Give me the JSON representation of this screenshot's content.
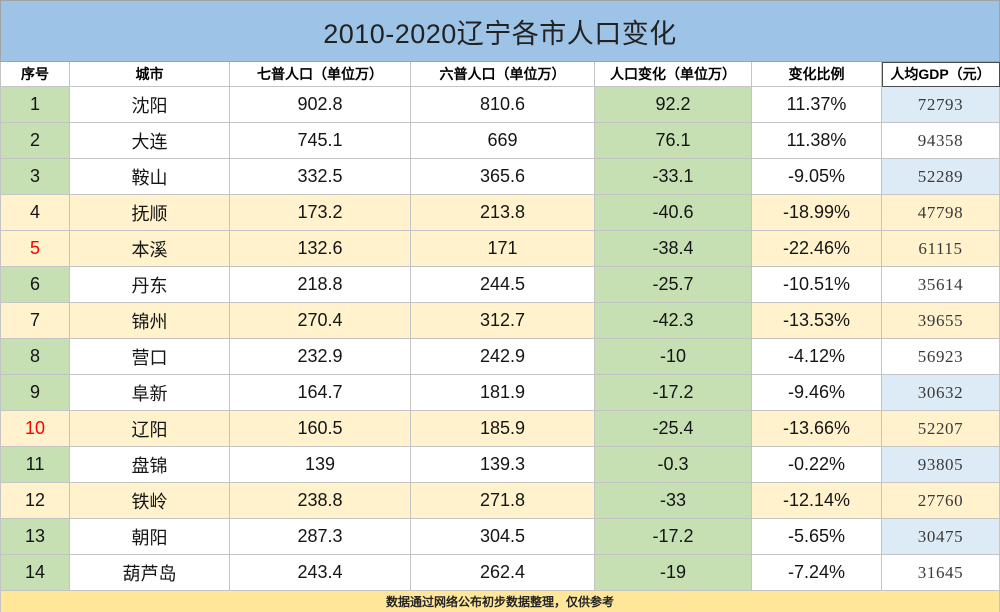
{
  "colors": {
    "title_bg": "#9dc3e6",
    "green": "#c6e0b4",
    "cream": "#fff2cc",
    "blue": "#ddebf7",
    "white": "#ffffff",
    "footer_bg": "#ffe699",
    "highlight_text": "#ff0000"
  },
  "chart_data": {
    "type": "table",
    "title": "2010-2020辽宁各市人口变化",
    "columns": [
      "序号",
      "城市",
      "七普人口（单位万）",
      "六普人口（单位万）",
      "人口变化（单位万）",
      "变化比例",
      "人均GDP（元）"
    ],
    "rows": [
      {
        "no": 1,
        "city": "沈阳",
        "pop_2020": 902.8,
        "pop_2010": 810.6,
        "change": 92.2,
        "change_ratio": "11.37%",
        "gdp_per_capita": 72793,
        "highlight": false,
        "red_index": false,
        "gdp_marked": true
      },
      {
        "no": 2,
        "city": "大连",
        "pop_2020": 745.1,
        "pop_2010": 669,
        "change": 76.1,
        "change_ratio": "11.38%",
        "gdp_per_capita": 94358,
        "highlight": false,
        "red_index": false,
        "gdp_marked": false
      },
      {
        "no": 3,
        "city": "鞍山",
        "pop_2020": 332.5,
        "pop_2010": 365.6,
        "change": -33.1,
        "change_ratio": "-9.05%",
        "gdp_per_capita": 52289,
        "highlight": false,
        "red_index": false,
        "gdp_marked": true
      },
      {
        "no": 4,
        "city": "抚顺",
        "pop_2020": 173.2,
        "pop_2010": 213.8,
        "change": -40.6,
        "change_ratio": "-18.99%",
        "gdp_per_capita": 47798,
        "highlight": true,
        "red_index": false,
        "gdp_marked": false
      },
      {
        "no": 5,
        "city": "本溪",
        "pop_2020": 132.6,
        "pop_2010": 171,
        "change": -38.4,
        "change_ratio": "-22.46%",
        "gdp_per_capita": 61115,
        "highlight": true,
        "red_index": true,
        "gdp_marked": false
      },
      {
        "no": 6,
        "city": "丹东",
        "pop_2020": 218.8,
        "pop_2010": 244.5,
        "change": -25.7,
        "change_ratio": "-10.51%",
        "gdp_per_capita": 35614,
        "highlight": false,
        "red_index": false,
        "gdp_marked": false
      },
      {
        "no": 7,
        "city": "锦州",
        "pop_2020": 270.4,
        "pop_2010": 312.7,
        "change": -42.3,
        "change_ratio": "-13.53%",
        "gdp_per_capita": 39655,
        "highlight": true,
        "red_index": false,
        "gdp_marked": false
      },
      {
        "no": 8,
        "city": "营口",
        "pop_2020": 232.9,
        "pop_2010": 242.9,
        "change": -10,
        "change_ratio": "-4.12%",
        "gdp_per_capita": 56923,
        "highlight": false,
        "red_index": false,
        "gdp_marked": false
      },
      {
        "no": 9,
        "city": "阜新",
        "pop_2020": 164.7,
        "pop_2010": 181.9,
        "change": -17.2,
        "change_ratio": "-9.46%",
        "gdp_per_capita": 30632,
        "highlight": false,
        "red_index": false,
        "gdp_marked": true
      },
      {
        "no": 10,
        "city": "辽阳",
        "pop_2020": 160.5,
        "pop_2010": 185.9,
        "change": -25.4,
        "change_ratio": "-13.66%",
        "gdp_per_capita": 52207,
        "highlight": true,
        "red_index": true,
        "gdp_marked": false
      },
      {
        "no": 11,
        "city": "盘锦",
        "pop_2020": 139,
        "pop_2010": 139.3,
        "change": -0.3,
        "change_ratio": "-0.22%",
        "gdp_per_capita": 93805,
        "highlight": false,
        "red_index": false,
        "gdp_marked": true
      },
      {
        "no": 12,
        "city": "铁岭",
        "pop_2020": 238.8,
        "pop_2010": 271.8,
        "change": -33,
        "change_ratio": "-12.14%",
        "gdp_per_capita": 27760,
        "highlight": true,
        "red_index": false,
        "gdp_marked": false
      },
      {
        "no": 13,
        "city": "朝阳",
        "pop_2020": 287.3,
        "pop_2010": 304.5,
        "change": -17.2,
        "change_ratio": "-5.65%",
        "gdp_per_capita": 30475,
        "highlight": false,
        "red_index": false,
        "gdp_marked": true
      },
      {
        "no": 14,
        "city": "葫芦岛",
        "pop_2020": 243.4,
        "pop_2010": 262.4,
        "change": -19,
        "change_ratio": "-7.24%",
        "gdp_per_capita": 31645,
        "highlight": false,
        "red_index": false,
        "gdp_marked": false
      }
    ],
    "note": "数据通过网络公布初步数据整理，仅供参考"
  }
}
